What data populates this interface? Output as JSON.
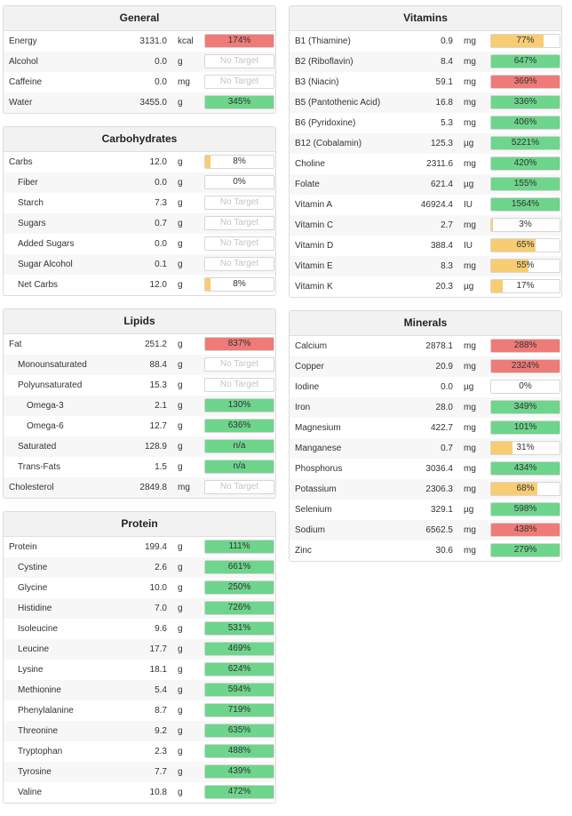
{
  "colors": {
    "green": "#6dd58c",
    "red": "#ee7b78",
    "yellow": "#f8cd72"
  },
  "panels": {
    "general": {
      "title": "General",
      "rows": [
        {
          "name": "Energy",
          "value": "3131.0",
          "unit": "kcal",
          "label": "174%",
          "fill": 1,
          "color": "red"
        },
        {
          "name": "Alcohol",
          "value": "0.0",
          "unit": "g",
          "label": "No Target",
          "fill": 0,
          "color": "none"
        },
        {
          "name": "Caffeine",
          "value": "0.0",
          "unit": "mg",
          "label": "No Target",
          "fill": 0,
          "color": "none"
        },
        {
          "name": "Water",
          "value": "3455.0",
          "unit": "g",
          "label": "345%",
          "fill": 1,
          "color": "green"
        }
      ]
    },
    "carbs": {
      "title": "Carbohydrates",
      "rows": [
        {
          "name": "Carbs",
          "value": "12.0",
          "unit": "g",
          "label": "8%",
          "fill": 0.08,
          "color": "yellow"
        },
        {
          "name": "Fiber",
          "value": "0.0",
          "unit": "g",
          "label": "0%",
          "fill": 0,
          "color": "yellow"
        },
        {
          "name": "Starch",
          "value": "7.3",
          "unit": "g",
          "label": "No Target",
          "fill": 0,
          "color": "none"
        },
        {
          "name": "Sugars",
          "value": "0.7",
          "unit": "g",
          "label": "No Target",
          "fill": 0,
          "color": "none"
        },
        {
          "name": "Added Sugars",
          "value": "0.0",
          "unit": "g",
          "label": "No Target",
          "fill": 0,
          "color": "none"
        },
        {
          "name": "Sugar Alcohol",
          "value": "0.1",
          "unit": "g",
          "label": "No Target",
          "fill": 0,
          "color": "none"
        },
        {
          "name": "Net Carbs",
          "value": "12.0",
          "unit": "g",
          "label": "8%",
          "fill": 0.08,
          "color": "yellow"
        }
      ]
    },
    "lipids": {
      "title": "Lipids",
      "rows": [
        {
          "name": "Fat",
          "value": "251.2",
          "unit": "g",
          "label": "837%",
          "fill": 1,
          "color": "red"
        },
        {
          "name": "Monounsaturated",
          "value": "88.4",
          "unit": "g",
          "label": "No Target",
          "fill": 0,
          "color": "none"
        },
        {
          "name": "Polyunsaturated",
          "value": "15.3",
          "unit": "g",
          "label": "No Target",
          "fill": 0,
          "color": "none"
        },
        {
          "name": "Omega-3",
          "value": "2.1",
          "unit": "g",
          "label": "130%",
          "fill": 1,
          "color": "green"
        },
        {
          "name": "Omega-6",
          "value": "12.7",
          "unit": "g",
          "label": "636%",
          "fill": 1,
          "color": "green"
        },
        {
          "name": "Saturated",
          "value": "128.9",
          "unit": "g",
          "label": "n/a",
          "fill": 1,
          "color": "green"
        },
        {
          "name": "Trans-Fats",
          "value": "1.5",
          "unit": "g",
          "label": "n/a",
          "fill": 1,
          "color": "green"
        },
        {
          "name": "Cholesterol",
          "value": "2849.8",
          "unit": "mg",
          "label": "No Target",
          "fill": 0,
          "color": "none"
        }
      ]
    },
    "protein": {
      "title": "Protein",
      "rows": [
        {
          "name": "Protein",
          "value": "199.4",
          "unit": "g",
          "label": "111%",
          "fill": 1,
          "color": "green"
        },
        {
          "name": "Cystine",
          "value": "2.6",
          "unit": "g",
          "label": "661%",
          "fill": 1,
          "color": "green"
        },
        {
          "name": "Glycine",
          "value": "10.0",
          "unit": "g",
          "label": "250%",
          "fill": 1,
          "color": "green"
        },
        {
          "name": "Histidine",
          "value": "7.0",
          "unit": "g",
          "label": "726%",
          "fill": 1,
          "color": "green"
        },
        {
          "name": "Isoleucine",
          "value": "9.6",
          "unit": "g",
          "label": "531%",
          "fill": 1,
          "color": "green"
        },
        {
          "name": "Leucine",
          "value": "17.7",
          "unit": "g",
          "label": "469%",
          "fill": 1,
          "color": "green"
        },
        {
          "name": "Lysine",
          "value": "18.1",
          "unit": "g",
          "label": "624%",
          "fill": 1,
          "color": "green"
        },
        {
          "name": "Methionine",
          "value": "5.4",
          "unit": "g",
          "label": "594%",
          "fill": 1,
          "color": "green"
        },
        {
          "name": "Phenylalanine",
          "value": "8.7",
          "unit": "g",
          "label": "719%",
          "fill": 1,
          "color": "green"
        },
        {
          "name": "Threonine",
          "value": "9.2",
          "unit": "g",
          "label": "635%",
          "fill": 1,
          "color": "green"
        },
        {
          "name": "Tryptophan",
          "value": "2.3",
          "unit": "g",
          "label": "488%",
          "fill": 1,
          "color": "green"
        },
        {
          "name": "Tyrosine",
          "value": "7.7",
          "unit": "g",
          "label": "439%",
          "fill": 1,
          "color": "green"
        },
        {
          "name": "Valine",
          "value": "10.8",
          "unit": "g",
          "label": "472%",
          "fill": 1,
          "color": "green"
        }
      ]
    },
    "vitamins": {
      "title": "Vitamins",
      "rows": [
        {
          "name": "B1 (Thiamine)",
          "value": "0.9",
          "unit": "mg",
          "label": "77%",
          "fill": 0.77,
          "color": "yellow"
        },
        {
          "name": "B2 (Riboflavin)",
          "value": "8.4",
          "unit": "mg",
          "label": "647%",
          "fill": 1,
          "color": "green"
        },
        {
          "name": "B3 (Niacin)",
          "value": "59.1",
          "unit": "mg",
          "label": "369%",
          "fill": 1,
          "color": "red"
        },
        {
          "name": "B5 (Pantothenic Acid)",
          "value": "16.8",
          "unit": "mg",
          "label": "336%",
          "fill": 1,
          "color": "green"
        },
        {
          "name": "B6 (Pyridoxine)",
          "value": "5.3",
          "unit": "mg",
          "label": "406%",
          "fill": 1,
          "color": "green"
        },
        {
          "name": "B12 (Cobalamin)",
          "value": "125.3",
          "unit": "µg",
          "label": "5221%",
          "fill": 1,
          "color": "green"
        },
        {
          "name": "Choline",
          "value": "2311.6",
          "unit": "mg",
          "label": "420%",
          "fill": 1,
          "color": "green"
        },
        {
          "name": "Folate",
          "value": "621.4",
          "unit": "µg",
          "label": "155%",
          "fill": 1,
          "color": "green"
        },
        {
          "name": "Vitamin A",
          "value": "46924.4",
          "unit": "IU",
          "label": "1564%",
          "fill": 1,
          "color": "green"
        },
        {
          "name": "Vitamin C",
          "value": "2.7",
          "unit": "mg",
          "label": "3%",
          "fill": 0.03,
          "color": "yellow"
        },
        {
          "name": "Vitamin D",
          "value": "388.4",
          "unit": "IU",
          "label": "65%",
          "fill": 0.65,
          "color": "yellow"
        },
        {
          "name": "Vitamin E",
          "value": "8.3",
          "unit": "mg",
          "label": "55%",
          "fill": 0.55,
          "color": "yellow"
        },
        {
          "name": "Vitamin K",
          "value": "20.3",
          "unit": "µg",
          "label": "17%",
          "fill": 0.17,
          "color": "yellow"
        }
      ]
    },
    "minerals": {
      "title": "Minerals",
      "rows": [
        {
          "name": "Calcium",
          "value": "2878.1",
          "unit": "mg",
          "label": "288%",
          "fill": 1,
          "color": "red"
        },
        {
          "name": "Copper",
          "value": "20.9",
          "unit": "mg",
          "label": "2324%",
          "fill": 1,
          "color": "red"
        },
        {
          "name": "Iodine",
          "value": "0.0",
          "unit": "µg",
          "label": "0%",
          "fill": 0,
          "color": "yellow"
        },
        {
          "name": "Iron",
          "value": "28.0",
          "unit": "mg",
          "label": "349%",
          "fill": 1,
          "color": "green"
        },
        {
          "name": "Magnesium",
          "value": "422.7",
          "unit": "mg",
          "label": "101%",
          "fill": 1,
          "color": "green"
        },
        {
          "name": "Manganese",
          "value": "0.7",
          "unit": "mg",
          "label": "31%",
          "fill": 0.31,
          "color": "yellow"
        },
        {
          "name": "Phosphorus",
          "value": "3036.4",
          "unit": "mg",
          "label": "434%",
          "fill": 1,
          "color": "green"
        },
        {
          "name": "Potassium",
          "value": "2306.3",
          "unit": "mg",
          "label": "68%",
          "fill": 0.68,
          "color": "yellow"
        },
        {
          "name": "Selenium",
          "value": "329.1",
          "unit": "µg",
          "label": "598%",
          "fill": 1,
          "color": "green"
        },
        {
          "name": "Sodium",
          "value": "6562.5",
          "unit": "mg",
          "label": "438%",
          "fill": 1,
          "color": "red"
        },
        {
          "name": "Zinc",
          "value": "30.6",
          "unit": "mg",
          "label": "279%",
          "fill": 1,
          "color": "green"
        }
      ]
    }
  }
}
